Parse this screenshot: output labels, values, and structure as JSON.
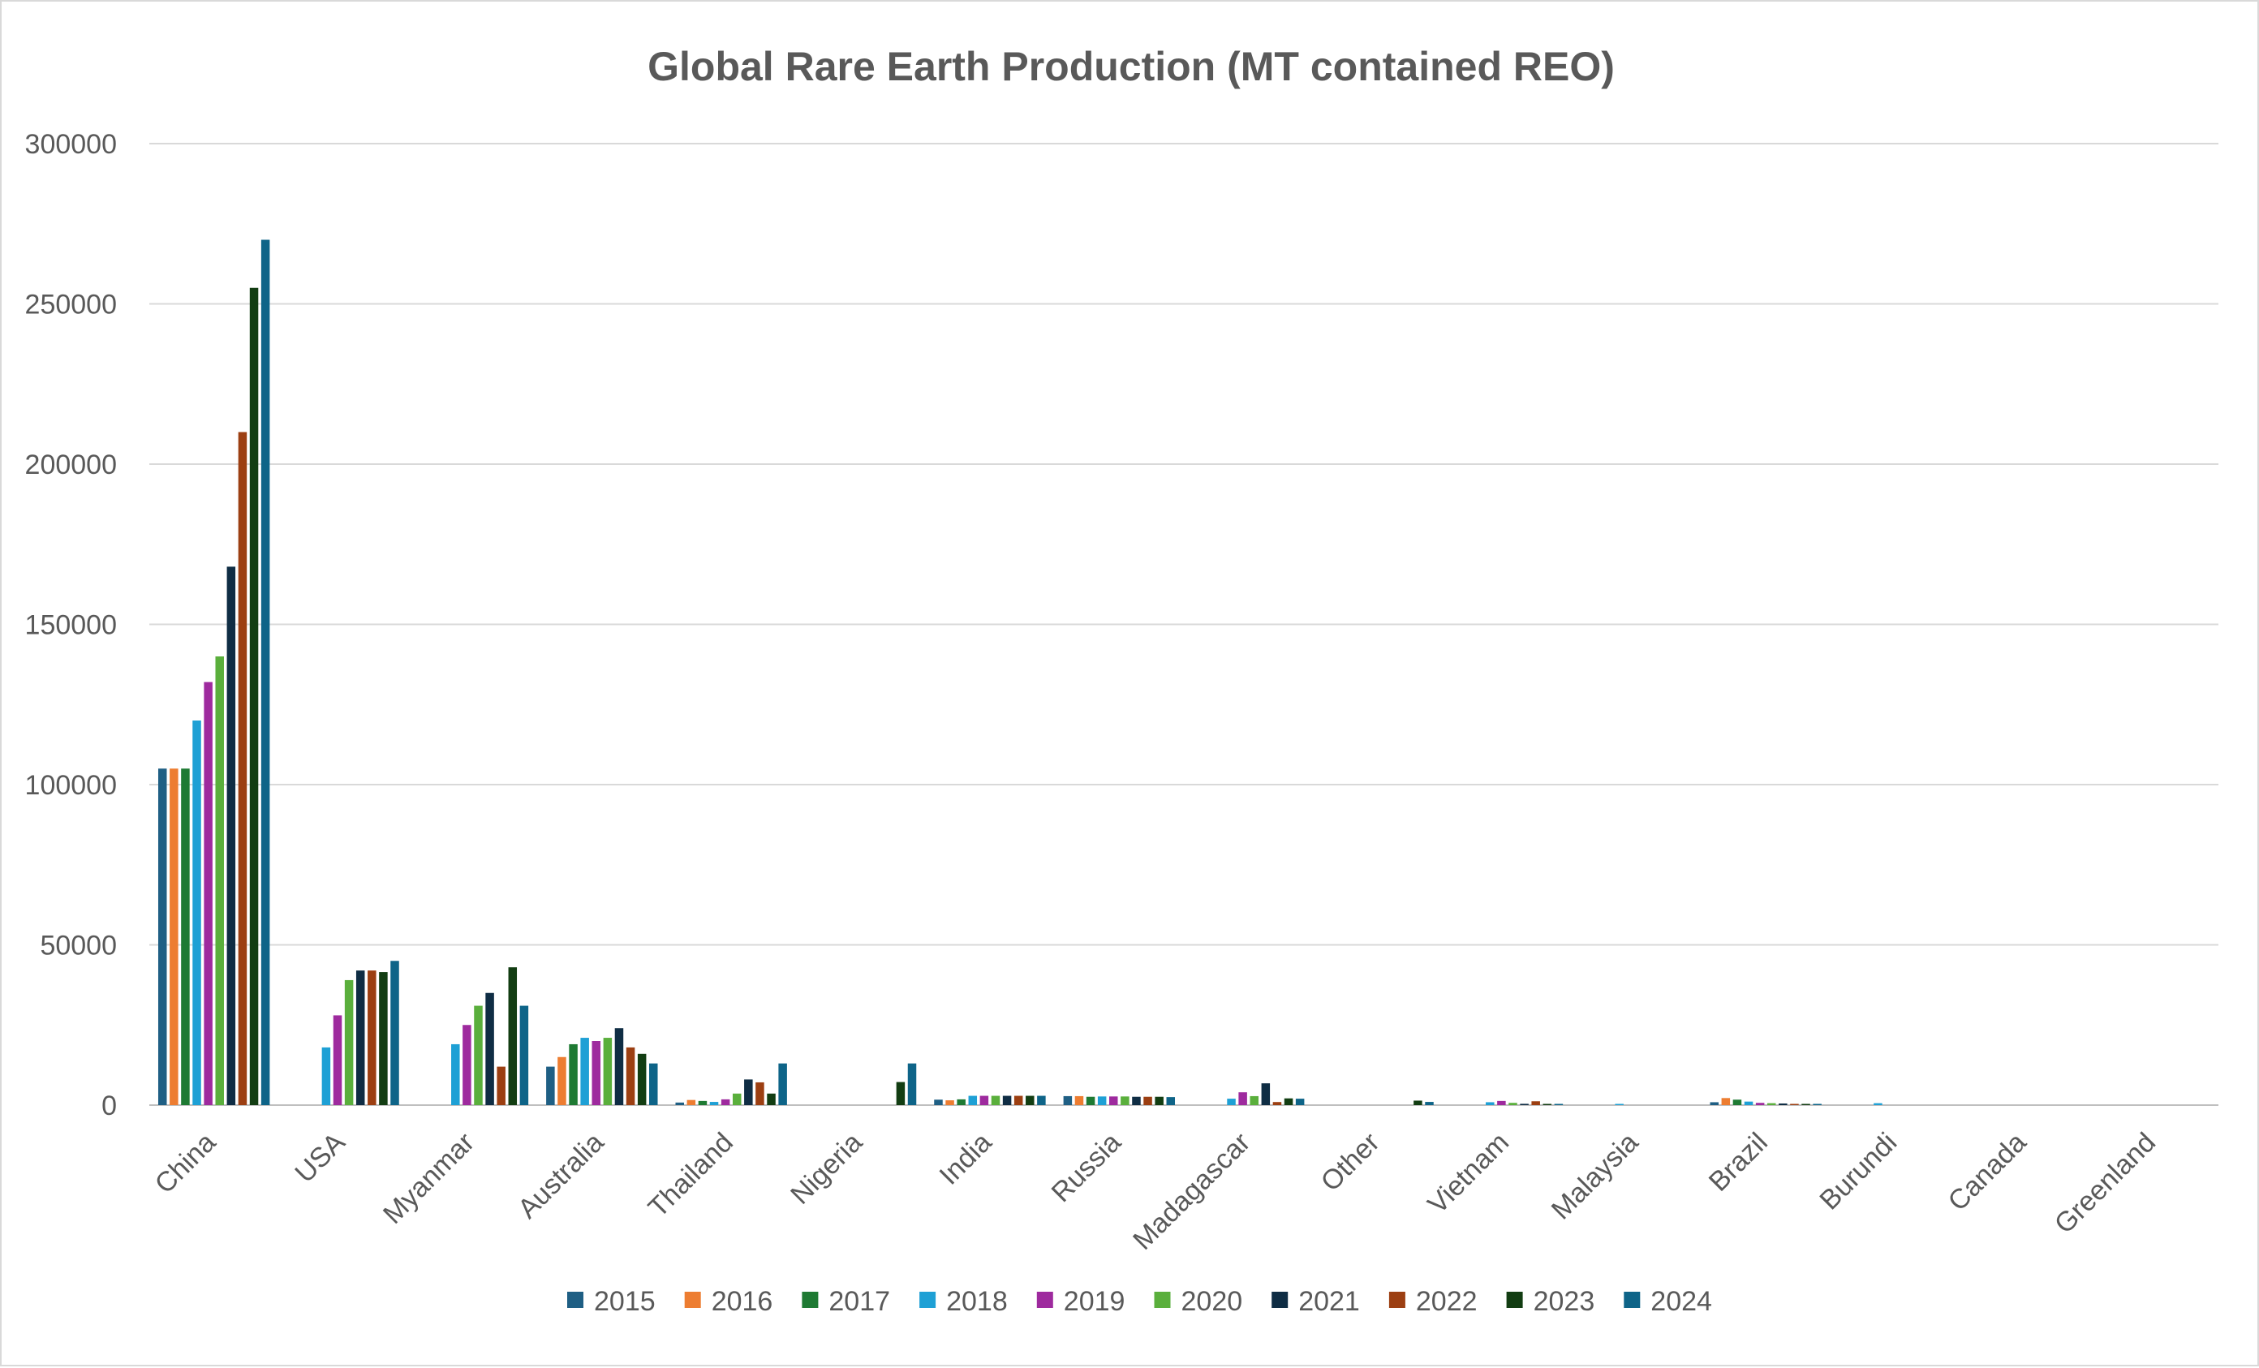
{
  "chart_data": {
    "type": "bar",
    "title": "Global Rare Earth Production (MT contained REO)",
    "xlabel": "",
    "ylabel": "",
    "ylim": [
      0,
      300000
    ],
    "yticks": [
      0,
      50000,
      100000,
      150000,
      200000,
      250000,
      300000
    ],
    "ytick_labels": [
      "0",
      "50000",
      "100000",
      "150000",
      "200000",
      "250000",
      "300000"
    ],
    "grid": true,
    "legend_position": "bottom",
    "categories": [
      "China",
      "USA",
      "Myanmar",
      "Australia",
      "Thailand",
      "Nigeria",
      "India",
      "Russia",
      "Madagascar",
      "Other",
      "Vietnam",
      "Malaysia",
      "Brazil",
      "Burundi",
      "Canada",
      "Greenland"
    ],
    "series": [
      {
        "name": "2015",
        "color": "#1f5f84",
        "values": [
          105000,
          0,
          0,
          12000,
          800,
          0,
          1700,
          2800,
          0,
          0,
          0,
          0,
          900,
          0,
          0,
          0
        ]
      },
      {
        "name": "2016",
        "color": "#ed7d31",
        "values": [
          105000,
          0,
          0,
          15000,
          1600,
          0,
          1500,
          2800,
          0,
          0,
          0,
          0,
          2200,
          0,
          0,
          0
        ]
      },
      {
        "name": "2017",
        "color": "#1e7a33",
        "values": [
          105000,
          0,
          0,
          19000,
          1300,
          0,
          1800,
          2600,
          0,
          0,
          0,
          0,
          1700,
          0,
          0,
          0
        ]
      },
      {
        "name": "2018",
        "color": "#1ea0d5",
        "values": [
          120000,
          18000,
          19000,
          21000,
          1000,
          0,
          2900,
          2700,
          2000,
          0,
          900,
          200,
          1100,
          600,
          0,
          0
        ]
      },
      {
        "name": "2019",
        "color": "#9e2a9e",
        "values": [
          132000,
          28000,
          25000,
          20000,
          1800,
          0,
          2900,
          2700,
          4000,
          0,
          1300,
          0,
          700,
          0,
          0,
          0
        ]
      },
      {
        "name": "2020",
        "color": "#5aaf3c",
        "values": [
          140000,
          39000,
          31000,
          21000,
          3600,
          0,
          2900,
          2700,
          2800,
          0,
          700,
          0,
          600,
          0,
          0,
          0
        ]
      },
      {
        "name": "2021",
        "color": "#0f2d44",
        "values": [
          168000,
          42000,
          35000,
          24000,
          8000,
          0,
          2900,
          2600,
          6800,
          0,
          400,
          0,
          500,
          0,
          0,
          0
        ]
      },
      {
        "name": "2022",
        "color": "#9c3f12",
        "values": [
          210000,
          42000,
          12000,
          18000,
          7100,
          0,
          2900,
          2600,
          960,
          0,
          1200,
          0,
          80,
          0,
          0,
          0
        ]
      },
      {
        "name": "2023",
        "color": "#123d12",
        "values": [
          255000,
          41500,
          43000,
          16000,
          3600,
          7200,
          2900,
          2600,
          2100,
          1400,
          300,
          0,
          100,
          0,
          0,
          0
        ]
      },
      {
        "name": "2024",
        "color": "#0e6488",
        "values": [
          270000,
          45000,
          31000,
          13000,
          13000,
          13000,
          2900,
          2500,
          2000,
          1000,
          300,
          0,
          50,
          0,
          0,
          0
        ]
      }
    ]
  }
}
